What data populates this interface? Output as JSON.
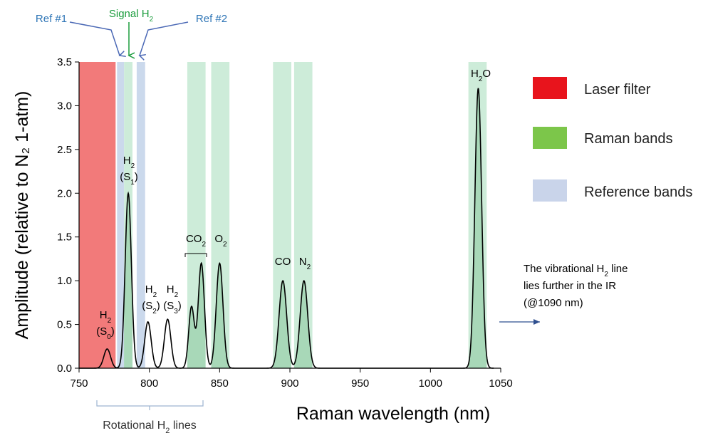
{
  "chart_data": {
    "type": "line",
    "xlabel": "Raman wavelength (nm)",
    "ylabel": "Amplitude (relative to N₂ 1-atm)",
    "xlim": [
      750,
      1050
    ],
    "ylim": [
      0,
      3.5
    ],
    "x_ticks": [
      750,
      800,
      850,
      900,
      950,
      1000,
      1050
    ],
    "y_ticks": [
      0.0,
      0.5,
      1.0,
      1.5,
      2.0,
      2.5,
      3.0,
      3.5
    ],
    "grid": false,
    "bands": [
      {
        "kind": "laser",
        "from": 750,
        "to": 776
      },
      {
        "kind": "reference",
        "from": 777,
        "to": 782
      },
      {
        "kind": "raman",
        "from": 782,
        "to": 788
      },
      {
        "kind": "reference",
        "from": 791,
        "to": 797
      },
      {
        "kind": "raman",
        "from": 827,
        "to": 840
      },
      {
        "kind": "raman",
        "from": 844,
        "to": 857
      },
      {
        "kind": "raman",
        "from": 888,
        "to": 901
      },
      {
        "kind": "raman",
        "from": 903,
        "to": 916
      },
      {
        "kind": "raman",
        "from": 1027,
        "to": 1040
      }
    ],
    "peaks": [
      {
        "center": 770,
        "height": 0.22,
        "sigma": 2.4
      },
      {
        "center": 785,
        "height": 2.0,
        "sigma": 2.2
      },
      {
        "center": 799,
        "height": 0.53,
        "sigma": 2.3
      },
      {
        "center": 813,
        "height": 0.56,
        "sigma": 2.3
      },
      {
        "center": 830,
        "height": 0.7,
        "sigma": 2.0
      },
      {
        "center": 837,
        "height": 1.2,
        "sigma": 2.2
      },
      {
        "center": 850,
        "height": 1.2,
        "sigma": 2.4
      },
      {
        "center": 895,
        "height": 1.0,
        "sigma": 2.7
      },
      {
        "center": 910,
        "height": 1.0,
        "sigma": 2.7
      },
      {
        "center": 1034,
        "height": 3.2,
        "sigma": 2.4
      }
    ],
    "peak_labels": [
      {
        "species": "H",
        "sub": "2",
        "tail": "",
        "line2": "(S",
        "line2_sub": "0",
        "line2_tail": ")"
      },
      {
        "species": "H",
        "sub": "2",
        "tail": "",
        "line2": "(S",
        "line2_sub": "1",
        "line2_tail": ")"
      },
      {
        "species": "H",
        "sub": "2",
        "tail": "",
        "line2": "(S",
        "line2_sub": "2",
        "line2_tail": ")"
      },
      {
        "species": "H",
        "sub": "2",
        "tail": "",
        "line2": "(S",
        "line2_sub": "3",
        "line2_tail": ")"
      },
      {
        "species": "CO",
        "sub": "2",
        "tail": "",
        "line2": "",
        "line2_sub": "",
        "line2_tail": ""
      },
      {
        "species": "O",
        "sub": "2",
        "tail": "",
        "line2": "",
        "line2_sub": "",
        "line2_tail": ""
      },
      {
        "species": "CO",
        "sub": "",
        "tail": "",
        "line2": "",
        "line2_sub": "",
        "line2_tail": ""
      },
      {
        "species": "N",
        "sub": "2",
        "tail": "",
        "line2": "",
        "line2_sub": "",
        "line2_tail": ""
      },
      {
        "species": "H",
        "sub": "2",
        "tail": "O",
        "line2": "",
        "line2_sub": "",
        "line2_tail": ""
      }
    ],
    "top_annotations": {
      "ref1": "Ref #1",
      "signal": "Signal H",
      "signal_sub": "2",
      "ref2": "Ref #2"
    },
    "bottom_annotation": {
      "text": "Rotational H",
      "sub": "2",
      "tail": " lines"
    },
    "side_note": {
      "line1": "The vibrational H",
      "line1_sub": "2",
      "line1_tail": " line",
      "line2": "lies further in the IR",
      "line3": "(@1090 nm)"
    },
    "legend": {
      "placement": "right",
      "items": [
        {
          "label": "Laser filter",
          "color": "#e8141c"
        },
        {
          "label": "Raman bands",
          "color": "#7cc64a"
        },
        {
          "label": "Reference bands",
          "color": "#c9d4ea"
        }
      ]
    },
    "colors": {
      "laser": "#f27a7a",
      "raman": "#cdecd9",
      "reference": "#cbd9ec",
      "line": "#000000",
      "fill": "#a8d8b8",
      "ref_text": "#2e75b6",
      "signal_text": "#1a9c3c",
      "arrow": "#4a68b5"
    }
  }
}
